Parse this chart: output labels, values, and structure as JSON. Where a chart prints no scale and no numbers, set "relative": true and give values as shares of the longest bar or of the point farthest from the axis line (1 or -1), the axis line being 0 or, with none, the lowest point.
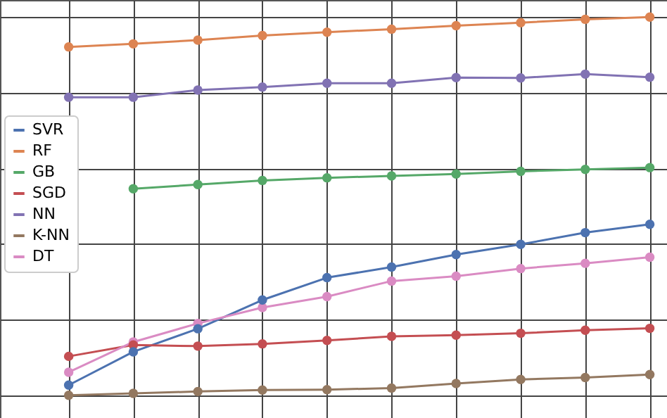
{
  "chart_data": {
    "type": "line",
    "relative": true,
    "categories": [
      null,
      null,
      null,
      null,
      null,
      null,
      null,
      null,
      null,
      null
    ],
    "grid": true,
    "legend": "left",
    "marker": "circle",
    "line_style": "solid",
    "tick_labels": false,
    "series": [
      {
        "name": "SVR",
        "color": "#4c72b0",
        "values": [
          0.027,
          0.115,
          0.176,
          0.252,
          0.311,
          0.339,
          0.372,
          0.399,
          0.43,
          0.452
        ]
      },
      {
        "name": "RF",
        "color": "#dd8452",
        "values": [
          0.921,
          0.929,
          0.939,
          0.951,
          0.96,
          0.968,
          0.977,
          0.985,
          0.994,
          1
        ]
      },
      {
        "name": "GB",
        "color": "#55a868",
        "values": [
          null,
          0.546,
          0.557,
          0.568,
          0.575,
          0.58,
          0.585,
          0.592,
          0.597,
          0.602
        ]
      },
      {
        "name": "SGD",
        "color": "#c44e52",
        "values": [
          0.103,
          0.133,
          0.13,
          0.136,
          0.145,
          0.156,
          0.159,
          0.164,
          0.172,
          0.177
        ]
      },
      {
        "name": "NN",
        "color": "#8172b3",
        "values": [
          0.788,
          0.788,
          0.807,
          0.815,
          0.825,
          0.825,
          0.84,
          0.839,
          0.849,
          0.841
        ]
      },
      {
        "name": "K-NN",
        "color": "#937860",
        "values": [
          0,
          0.005,
          0.01,
          0.014,
          0.015,
          0.019,
          0.031,
          0.042,
          0.047,
          0.055
        ]
      },
      {
        "name": "DT",
        "color": "#da8bc3",
        "values": [
          0.061,
          0.141,
          0.19,
          0.232,
          0.261,
          0.302,
          0.315,
          0.335,
          0.349,
          0.365
        ]
      }
    ]
  }
}
